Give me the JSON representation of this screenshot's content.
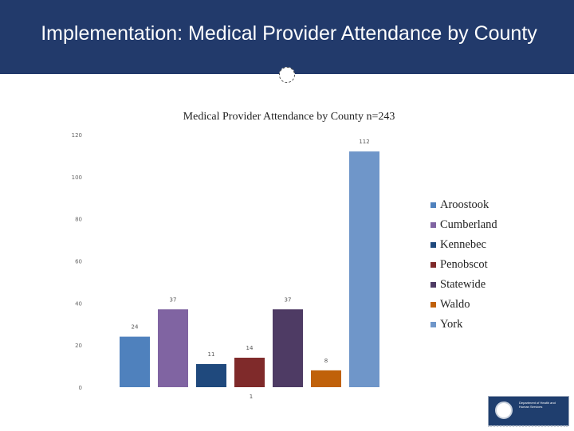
{
  "slide": {
    "title": "Implementation:  Medical Provider Attendance by County"
  },
  "chart_data": {
    "type": "bar",
    "title": "Medical Provider Attendance by County  n=243",
    "xlabel": "",
    "ylabel": "",
    "ylim": [
      0,
      120
    ],
    "yticks": [
      "0",
      "20",
      "40",
      "60",
      "80",
      "100",
      "120"
    ],
    "x_tick_label": "1",
    "grid": false,
    "legend_position": "right",
    "series": [
      {
        "name": "Aroostook",
        "values": [
          24
        ],
        "color": "#4f81bd"
      },
      {
        "name": "Cumberland",
        "values": [
          37
        ],
        "color": "#8064a2"
      },
      {
        "name": "Kennebec",
        "values": [
          11
        ],
        "color": "#1f497d"
      },
      {
        "name": "Penobscot",
        "values": [
          14
        ],
        "color": "#7f2a2a"
      },
      {
        "name": "Statewide",
        "values": [
          37
        ],
        "color": "#4e3b64"
      },
      {
        "name": "Waldo",
        "values": [
          8
        ],
        "color": "#c0610a"
      },
      {
        "name": "York",
        "values": [
          112
        ],
        "color": "#6f96c9"
      }
    ]
  },
  "logo": {
    "text": "Department of Health and Human Services"
  }
}
